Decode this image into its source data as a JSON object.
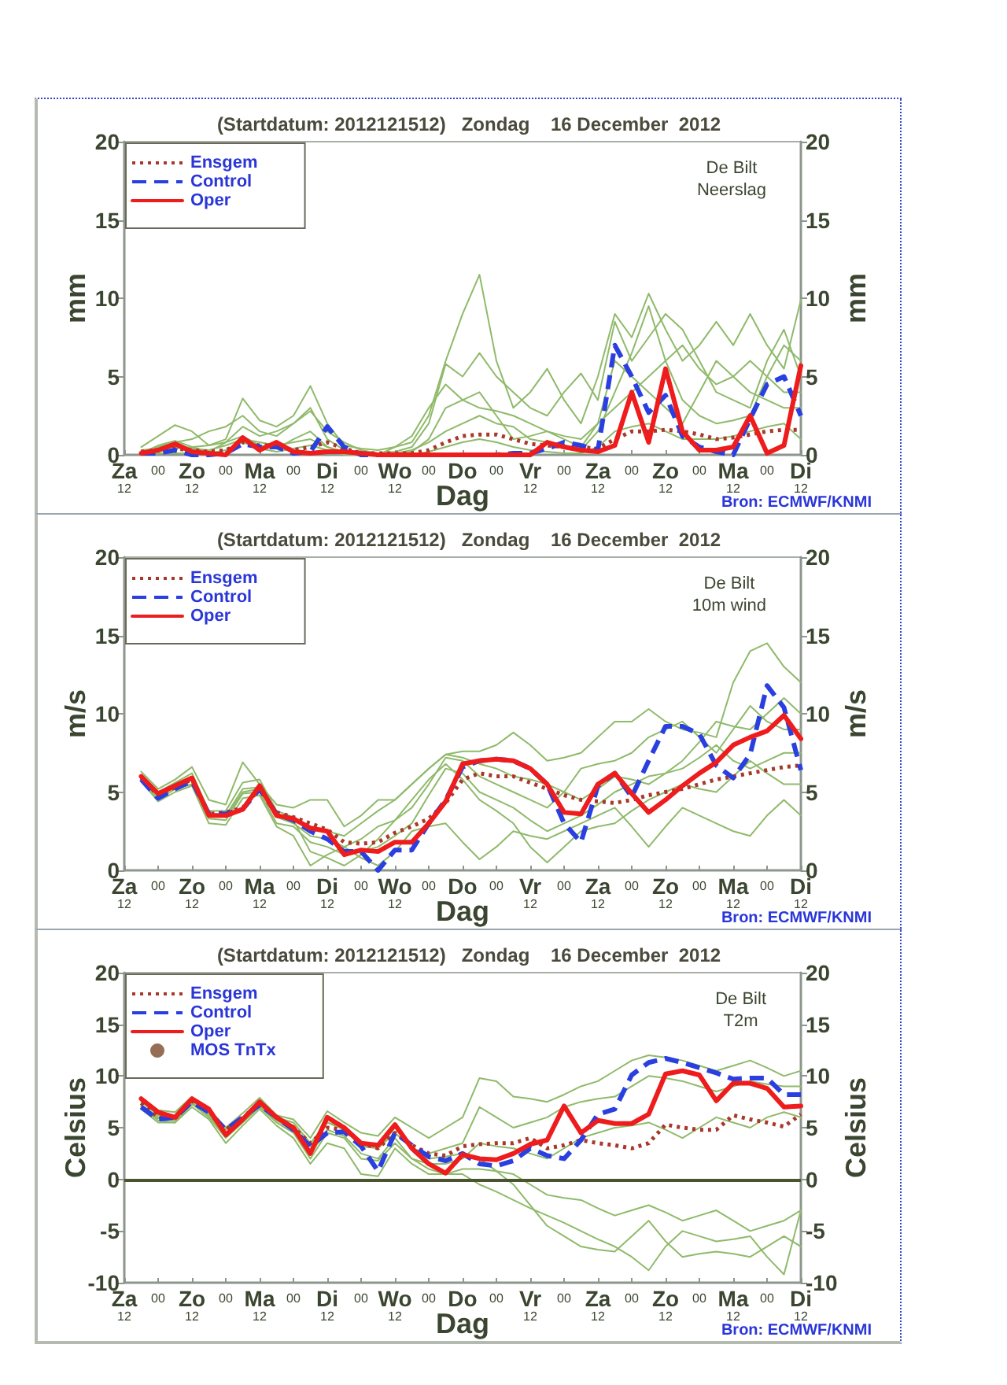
{
  "chart_data": [
    {
      "type": "line",
      "title": "(Startdatum: 2012121512)   Zondag    16 December  2012",
      "xlabel": "Dag",
      "ylabel": "mm",
      "y2label": "mm",
      "annotations": [
        "De Bilt\nNeerslag",
        "Bron: ECMWF/KNMI"
      ],
      "legend": "top left",
      "categories": [
        "Za\n12",
        null,
        "00",
        null,
        "Zo\n12",
        null,
        "00",
        null,
        "Ma\n12",
        null,
        "00",
        null,
        "Di\n12",
        null,
        "00",
        null,
        "Wo\n12",
        null,
        "00",
        null,
        "Do",
        null,
        "00",
        null,
        "Vr\n12",
        null,
        "00",
        null,
        "Za\n12",
        null,
        "00",
        null,
        "Zo\n12",
        null,
        "00",
        null,
        "Ma\n12",
        null,
        "00",
        null,
        "Di\n12"
      ],
      "ylim": [
        0,
        20
      ],
      "yticks": [
        0,
        5,
        10,
        15,
        20
      ],
      "y2lim": [
        0,
        20
      ],
      "y2ticks": [
        0,
        5,
        10,
        15,
        20
      ],
      "series": [
        {
          "color": "#8fba6a",
          "values": [
            null,
            0.5,
            1.2,
            1.9,
            1.5,
            0.6,
            1.0,
            3.6,
            2.2,
            1.8,
            2.5,
            4.4,
            2.0,
            0.6,
            0.4,
            0.3,
            0.5,
            0.8,
            2.5,
            6.0,
            9.0,
            11.5,
            6.0,
            3.0,
            4.0,
            5.5,
            3.5,
            2.0,
            5.0,
            9.0,
            7.5,
            10.3,
            8.0,
            6.0,
            7.0,
            8.5,
            7.0,
            9.0,
            7.0,
            5.5,
            9.9
          ]
        },
        {
          "color": "#8fba6a",
          "values": [
            null,
            0.2,
            0.5,
            0.8,
            1.0,
            1.5,
            1.8,
            2.5,
            1.5,
            1.2,
            2.0,
            2.8,
            1.5,
            0.8,
            0.3,
            0.1,
            0.2,
            0.5,
            2.0,
            5.8,
            5.0,
            6.5,
            5.0,
            4.0,
            3.0,
            2.5,
            4.0,
            5.2,
            3.5,
            8.5,
            6.0,
            7.5,
            9.0,
            8.0,
            6.0,
            4.0,
            3.5,
            3.0,
            6.0,
            8.0,
            5.0
          ]
        },
        {
          "color": "#8fba6a",
          "values": [
            null,
            0.1,
            0.6,
            0.9,
            0.5,
            0.2,
            0.8,
            1.8,
            1.2,
            1.5,
            2.0,
            3.0,
            1.0,
            0.3,
            0.1,
            0.0,
            0.1,
            0.2,
            1.0,
            3.0,
            3.5,
            4.0,
            2.5,
            1.0,
            1.2,
            1.5,
            1.0,
            0.5,
            2.0,
            6.0,
            5.0,
            4.0,
            3.0,
            2.0,
            4.0,
            6.0,
            5.0,
            4.0,
            3.5,
            3.0,
            3.0
          ]
        },
        {
          "color": "#8fba6a",
          "values": [
            null,
            0.0,
            0.2,
            0.4,
            0.5,
            0.6,
            0.8,
            1.2,
            0.6,
            0.4,
            1.0,
            1.5,
            0.5,
            0.1,
            0.0,
            0.0,
            0.1,
            0.3,
            0.8,
            1.5,
            2.0,
            2.5,
            2.0,
            1.8,
            1.0,
            0.8,
            0.5,
            0.3,
            1.5,
            4.0,
            6.5,
            9.5,
            6.0,
            3.5,
            2.5,
            2.0,
            2.2,
            2.5,
            5.0,
            7.0,
            6.0
          ]
        },
        {
          "color": "#8fba6a",
          "values": [
            null,
            0.0,
            0.1,
            0.1,
            0.1,
            0.1,
            0.3,
            0.8,
            0.4,
            0.2,
            0.4,
            0.6,
            0.3,
            0.0,
            0.0,
            0.0,
            0.0,
            0.0,
            0.2,
            0.5,
            0.8,
            1.0,
            0.8,
            0.5,
            0.3,
            0.2,
            0.1,
            0.1,
            0.5,
            1.5,
            1.8,
            2.0,
            1.5,
            1.0,
            1.0,
            1.0,
            1.2,
            1.5,
            1.8,
            2.0,
            1.0
          ]
        },
        {
          "color": "#8fba6a",
          "values": [
            null,
            0.3,
            0.4,
            0.5,
            0.4,
            0.3,
            0.6,
            1.0,
            0.8,
            0.6,
            0.8,
            1.0,
            0.5,
            0.2,
            0.1,
            0.0,
            0.5,
            1.2,
            3.0,
            4.5,
            3.5,
            3.0,
            2.8,
            2.5,
            2.0,
            1.5,
            1.2,
            1.0,
            2.0,
            3.0,
            4.0,
            5.0,
            6.0,
            7.0,
            5.5,
            4.5,
            5.0,
            6.0,
            5.0,
            4.0,
            4.0
          ]
        },
        {
          "name": "Ensgem",
          "color": "#a8382a",
          "line_style": "dotted",
          "values": [
            null,
            0.2,
            0.3,
            0.4,
            0.3,
            0.2,
            0.3,
            0.8,
            0.6,
            0.6,
            0.3,
            0.5,
            0.8,
            0.4,
            0.1,
            0.1,
            0.1,
            0.1,
            0.3,
            0.8,
            1.2,
            1.3,
            1.3,
            1.0,
            0.7,
            0.6,
            0.5,
            0.5,
            0.4,
            1.0,
            1.5,
            1.5,
            1.6,
            1.5,
            1.3,
            1.0,
            1.1,
            1.3,
            1.5,
            1.6,
            1.6
          ]
        },
        {
          "name": "Control",
          "color": "#2a3fe0",
          "line_style": "dashed",
          "values": [
            null,
            0.1,
            0.1,
            0.3,
            0.0,
            0.0,
            0.1,
            0.7,
            0.5,
            0.5,
            0.1,
            0.2,
            1.8,
            0.5,
            0.0,
            0.0,
            0.0,
            0.0,
            0.0,
            0.0,
            0.0,
            0.0,
            0.0,
            0.1,
            0.1,
            0.4,
            0.8,
            0.6,
            0.3,
            7.0,
            5.0,
            2.7,
            3.8,
            1.2,
            0.5,
            0.2,
            0.0,
            2.3,
            4.5,
            5.0,
            2.5
          ]
        },
        {
          "name": "Oper",
          "color": "#ee1c1c",
          "line_style": "solid",
          "values": [
            null,
            0.1,
            0.3,
            0.7,
            0.2,
            0.1,
            0.0,
            1.1,
            0.3,
            0.8,
            0.2,
            0.1,
            0.2,
            0.2,
            0.1,
            0.0,
            0.0,
            0.0,
            0.0,
            0.0,
            0.0,
            0.0,
            0.0,
            0.0,
            0.0,
            0.8,
            0.5,
            0.3,
            0.2,
            0.6,
            4.0,
            0.8,
            5.5,
            1.5,
            0.3,
            0.3,
            0.5,
            2.5,
            0.1,
            0.6,
            5.7
          ]
        }
      ]
    },
    {
      "type": "line",
      "title": "(Startdatum: 2012121512)   Zondag    16 December  2012",
      "xlabel": "Dag",
      "ylabel": "m/s",
      "y2label": "m/s",
      "annotations": [
        "De Bilt\n10m wind",
        "Bron: ECMWF/KNMI"
      ],
      "legend": "top left",
      "categories": [
        "Za\n12",
        null,
        "00",
        null,
        "Zo\n12",
        null,
        "00",
        null,
        "Ma\n12",
        null,
        "00",
        null,
        "Di\n12",
        null,
        "00",
        null,
        "Wo\n12",
        null,
        "00",
        null,
        "Do",
        null,
        "00",
        null,
        "Vr\n12",
        null,
        "00",
        null,
        "Za\n12",
        null,
        "00",
        null,
        "Zo\n12",
        null,
        "00",
        null,
        "Ma\n12",
        null,
        "00",
        null,
        "Di\n12"
      ],
      "ylim": [
        0,
        20
      ],
      "yticks": [
        0,
        5,
        10,
        15,
        20
      ],
      "y2lim": [
        0,
        20
      ],
      "y2ticks": [
        0,
        5,
        10,
        15,
        20
      ],
      "series": [
        {
          "color": "#8fba6a",
          "values": [
            null,
            6.3,
            5.2,
            5.8,
            6.6,
            4.5,
            4.2,
            6.9,
            5.5,
            4.2,
            4.0,
            4.5,
            4.5,
            2.8,
            3.5,
            4.5,
            4.5,
            5.5,
            6.5,
            7.4,
            7.6,
            7.6,
            8.0,
            8.8,
            8.0,
            7.0,
            7.2,
            7.5,
            8.5,
            9.5,
            9.5,
            10.3,
            9.5,
            9.0,
            8.8,
            8.5,
            12.0,
            14.0,
            14.5,
            13.0,
            12.0
          ]
        },
        {
          "color": "#8fba6a",
          "values": [
            null,
            5.8,
            4.7,
            5.3,
            5.8,
            3.6,
            3.4,
            5.0,
            5.2,
            3.4,
            3.0,
            2.2,
            2.0,
            1.5,
            2.0,
            2.8,
            3.2,
            4.0,
            5.5,
            7.2,
            7.0,
            6.0,
            5.5,
            5.0,
            4.5,
            4.0,
            5.0,
            6.5,
            6.8,
            7.0,
            7.5,
            8.5,
            9.0,
            9.5,
            8.5,
            7.5,
            9.0,
            10.5,
            9.5,
            9.0,
            9.0
          ]
        },
        {
          "color": "#8fba6a",
          "values": [
            null,
            5.9,
            4.5,
            5.2,
            5.5,
            3.3,
            3.2,
            4.9,
            5.0,
            3.0,
            2.8,
            1.8,
            1.5,
            1.0,
            1.2,
            1.5,
            2.2,
            3.0,
            4.8,
            6.5,
            6.2,
            5.0,
            4.5,
            4.0,
            3.2,
            2.5,
            3.0,
            3.5,
            4.2,
            5.0,
            5.5,
            6.0,
            6.2,
            6.5,
            7.2,
            8.0,
            7.0,
            6.5,
            7.0,
            7.5,
            7.5
          ]
        },
        {
          "color": "#8fba6a",
          "values": [
            null,
            6.0,
            4.8,
            5.5,
            5.9,
            3.5,
            3.5,
            5.2,
            5.3,
            3.5,
            3.2,
            1.2,
            0.8,
            0.3,
            1.0,
            2.0,
            3.2,
            4.5,
            5.8,
            6.8,
            5.8,
            4.5,
            3.8,
            3.0,
            1.5,
            0.5,
            1.5,
            2.5,
            2.8,
            3.0,
            3.8,
            4.5,
            5.0,
            5.5,
            5.2,
            5.0,
            6.0,
            7.0,
            6.2,
            5.5,
            5.5
          ]
        },
        {
          "color": "#8fba6a",
          "values": [
            null,
            5.7,
            4.4,
            5.0,
            5.4,
            3.0,
            2.9,
            4.6,
            4.8,
            2.8,
            2.2,
            0.3,
            1.0,
            1.5,
            0.8,
            0.3,
            1.2,
            2.5,
            2.8,
            3.0,
            1.8,
            0.7,
            1.5,
            2.5,
            2.2,
            2.0,
            2.5,
            3.0,
            3.5,
            4.0,
            2.8,
            1.5,
            2.8,
            4.0,
            3.5,
            3.0,
            2.5,
            2.2,
            3.5,
            4.5,
            3.5
          ]
        },
        {
          "color": "#8fba6a",
          "values": [
            null,
            6.1,
            5.0,
            5.6,
            6.2,
            3.8,
            3.8,
            5.6,
            5.8,
            3.8,
            3.4,
            2.8,
            2.5,
            2.2,
            3.0,
            3.8,
            4.5,
            5.5,
            6.5,
            7.4,
            7.2,
            6.8,
            6.5,
            6.0,
            5.8,
            5.5,
            5.0,
            4.5,
            5.2,
            6.0,
            5.8,
            5.5,
            6.2,
            7.0,
            8.2,
            9.5,
            9.2,
            9.0,
            10.0,
            11.0,
            10.0
          ]
        },
        {
          "name": "Ensgem",
          "color": "#a8382a",
          "line_style": "dotted",
          "values": [
            null,
            5.9,
            4.8,
            5.3,
            5.8,
            3.6,
            3.7,
            4.0,
            5.2,
            3.7,
            3.4,
            3.0,
            2.6,
            1.8,
            1.7,
            1.8,
            2.4,
            2.8,
            3.3,
            4.3,
            5.8,
            6.2,
            6.0,
            6.0,
            5.6,
            5.2,
            4.8,
            4.5,
            4.4,
            4.3,
            4.5,
            4.8,
            5.0,
            5.2,
            5.5,
            5.8,
            6.0,
            6.2,
            6.4,
            6.6,
            6.7
          ]
        },
        {
          "name": "Control",
          "color": "#2a3fe0",
          "line_style": "dashed",
          "values": [
            null,
            5.8,
            4.6,
            5.2,
            5.7,
            3.6,
            3.6,
            3.9,
            5.2,
            3.6,
            3.2,
            2.5,
            2.0,
            1.2,
            1.2,
            0.0,
            1.3,
            1.3,
            3.0,
            4.5,
            6.6,
            7.0,
            7.1,
            7.0,
            6.5,
            5.5,
            3.0,
            1.8,
            5.4,
            6.2,
            4.7,
            7.0,
            9.2,
            9.2,
            8.7,
            6.7,
            5.9,
            7.4,
            11.8,
            10.4,
            6.4
          ]
        },
        {
          "name": "Oper",
          "color": "#ee1c1c",
          "line_style": "solid",
          "values": [
            null,
            6.0,
            4.9,
            5.4,
            5.9,
            3.5,
            3.5,
            3.9,
            5.4,
            3.5,
            3.3,
            2.7,
            2.5,
            1.0,
            1.3,
            1.2,
            1.8,
            1.8,
            3.0,
            4.4,
            6.8,
            7.0,
            7.1,
            7.0,
            6.5,
            5.5,
            3.7,
            3.6,
            5.5,
            6.2,
            4.9,
            3.7,
            4.5,
            5.4,
            6.2,
            6.9,
            8.0,
            8.5,
            8.9,
            9.9,
            8.4
          ]
        }
      ]
    },
    {
      "type": "line",
      "title": "(Startdatum: 2012121512)   Zondag    16 December  2012",
      "xlabel": "Dag",
      "ylabel": "Celsius",
      "y2label": "Celsius",
      "annotations": [
        "De Bilt\nT2m",
        "Bron: ECMWF/KNMI"
      ],
      "legend": "top left",
      "categories": [
        "Za\n12",
        null,
        "00",
        null,
        "Zo\n12",
        null,
        "00",
        null,
        "Ma\n12",
        null,
        "00",
        null,
        "Di\n12",
        null,
        "00",
        null,
        "Wo\n12",
        null,
        "00",
        null,
        "Do",
        null,
        "00",
        null,
        "Vr\n12",
        null,
        "00",
        null,
        "Za\n12",
        null,
        "00",
        null,
        "Zo\n12",
        null,
        "00",
        null,
        "Ma\n12",
        null,
        "00",
        null,
        "Di\n12"
      ],
      "ylim": [
        -10,
        20
      ],
      "yticks": [
        -10,
        -5,
        0,
        5,
        10,
        15,
        20
      ],
      "y2lim": [
        -10,
        20
      ],
      "y2ticks": [
        -10,
        -5,
        0,
        5,
        10,
        15,
        20
      ],
      "ref_lines": [
        {
          "axis": "y",
          "value": 0,
          "color": "#4a5530"
        }
      ],
      "series": [
        {
          "color": "#8fba6a",
          "values": [
            null,
            7.9,
            6.7,
            6.5,
            8.0,
            6.8,
            5.0,
            6.4,
            7.9,
            6.2,
            5.8,
            4.0,
            6.6,
            5.5,
            4.5,
            4.2,
            6.0,
            5.0,
            4.0,
            5.0,
            6.0,
            9.8,
            9.5,
            8.0,
            7.8,
            7.5,
            8.2,
            9.0,
            9.5,
            10.5,
            11.5,
            12.0,
            11.8,
            11.5,
            11.0,
            10.5,
            11.0,
            11.5,
            10.8,
            10.0,
            10.5
          ]
        },
        {
          "color": "#8fba6a",
          "values": [
            null,
            7.2,
            6.0,
            5.8,
            7.6,
            6.4,
            4.5,
            5.8,
            7.3,
            5.8,
            5.2,
            3.2,
            5.5,
            4.8,
            3.2,
            3.0,
            4.5,
            3.0,
            2.5,
            3.0,
            3.5,
            7.0,
            6.0,
            5.0,
            5.5,
            6.0,
            7.0,
            7.5,
            7.8,
            8.0,
            9.0,
            10.0,
            9.8,
            9.5,
            9.0,
            8.5,
            9.0,
            9.5,
            9.2,
            9.0,
            9.0
          ]
        },
        {
          "color": "#8fba6a",
          "values": [
            null,
            7.0,
            5.7,
            5.5,
            7.3,
            6.0,
            4.0,
            5.5,
            7.0,
            5.5,
            4.5,
            2.0,
            4.5,
            4.0,
            2.0,
            1.8,
            3.5,
            2.0,
            1.5,
            1.5,
            2.0,
            3.5,
            3.2,
            3.0,
            2.5,
            2.0,
            3.0,
            4.0,
            4.5,
            5.0,
            5.2,
            5.5,
            4.8,
            4.0,
            5.0,
            6.0,
            5.5,
            5.0,
            6.0,
            6.5,
            6.0
          ]
        },
        {
          "color": "#8fba6a",
          "values": [
            null,
            6.8,
            5.5,
            5.5,
            7.0,
            5.8,
            3.5,
            5.2,
            6.8,
            5.2,
            4.0,
            1.5,
            3.5,
            3.0,
            0.5,
            0.3,
            3.0,
            1.5,
            0.5,
            0.5,
            1.0,
            1.0,
            0.8,
            0.5,
            -0.5,
            -1.5,
            -1.8,
            -2.0,
            -2.8,
            -3.5,
            -3.0,
            -2.5,
            -3.2,
            -4.0,
            -3.5,
            -3.0,
            -4.0,
            -5.0,
            -4.5,
            -4.0,
            -3.0
          ]
        },
        {
          "color": "#8fba6a",
          "values": [
            null,
            7.1,
            5.9,
            5.7,
            7.4,
            6.2,
            4.2,
            5.7,
            7.1,
            5.7,
            4.8,
            2.5,
            4.8,
            4.2,
            2.5,
            2.0,
            4.0,
            2.0,
            1.0,
            0.5,
            0.5,
            -0.5,
            -1.2,
            -2.0,
            -2.8,
            -3.5,
            -4.2,
            -5.0,
            -5.8,
            -6.5,
            -7.5,
            -8.8,
            -6.5,
            -5.0,
            -5.5,
            -6.0,
            -5.8,
            -5.5,
            -7.5,
            -9.2,
            -3.0
          ]
        },
        {
          "color": "#8fba6a",
          "values": [
            null,
            7.5,
            6.2,
            6.0,
            7.8,
            6.5,
            4.8,
            6.0,
            7.5,
            6.0,
            5.5,
            3.5,
            5.5,
            5.0,
            3.5,
            3.0,
            5.0,
            3.0,
            2.0,
            2.2,
            2.5,
            2.0,
            0.8,
            -0.5,
            -2.5,
            -4.5,
            -5.5,
            -6.5,
            -6.8,
            -7.0,
            -5.5,
            -4.0,
            -6.0,
            -7.5,
            -7.2,
            -7.0,
            -7.2,
            -7.5,
            -6.5,
            -5.5,
            -6.5
          ]
        },
        {
          "name": "Ensgem",
          "color": "#a8382a",
          "line_style": "dotted",
          "values": [
            null,
            7.4,
            6.0,
            5.9,
            7.6,
            6.6,
            4.8,
            6.0,
            7.2,
            6.0,
            5.0,
            3.5,
            5.0,
            4.8,
            3.5,
            3.0,
            4.5,
            3.3,
            2.5,
            2.3,
            3.2,
            3.4,
            3.5,
            3.5,
            4.0,
            3.0,
            3.3,
            3.8,
            3.5,
            3.3,
            3.0,
            3.5,
            5.3,
            5.0,
            4.8,
            4.8,
            6.2,
            5.8,
            5.5,
            5.1,
            6.3
          ]
        },
        {
          "name": "Control",
          "color": "#2a3fe0",
          "line_style": "dashed",
          "values": [
            null,
            7.0,
            5.8,
            6.0,
            7.5,
            6.5,
            4.8,
            6.0,
            7.2,
            6.0,
            4.8,
            3.2,
            4.5,
            4.6,
            3.2,
            0.8,
            4.5,
            3.3,
            2.2,
            1.8,
            2.5,
            1.5,
            1.3,
            1.8,
            3.0,
            2.3,
            2.0,
            3.8,
            6.3,
            6.8,
            10.1,
            11.3,
            11.7,
            11.3,
            10.8,
            10.3,
            9.7,
            9.8,
            9.8,
            8.2,
            8.2
          ]
        },
        {
          "name": "Oper",
          "color": "#ee1c1c",
          "line_style": "solid",
          "values": [
            null,
            7.8,
            6.5,
            6.0,
            7.8,
            6.8,
            4.3,
            5.8,
            7.5,
            6.0,
            5.0,
            2.5,
            6.0,
            5.0,
            3.5,
            3.3,
            5.3,
            3.0,
            1.5,
            0.6,
            2.4,
            2.0,
            1.9,
            2.5,
            3.4,
            3.8,
            7.1,
            4.5,
            5.7,
            5.4,
            5.4,
            6.3,
            10.2,
            10.5,
            10.1,
            7.6,
            9.3,
            9.3,
            8.8,
            7.0,
            7.1
          ]
        },
        {
          "name": "MOS TnTx",
          "type": "scatter",
          "marker": "circle",
          "color": "#7a4a2a",
          "values": [
            null,
            null,
            null,
            null,
            null,
            null,
            null,
            null,
            null,
            null,
            null,
            null,
            null,
            null,
            null,
            null,
            null,
            null,
            null,
            null,
            null,
            null,
            null,
            null,
            null,
            null,
            null,
            null,
            null,
            null,
            null,
            null,
            null,
            null,
            null,
            null,
            null,
            null,
            null,
            null,
            null
          ]
        }
      ]
    }
  ]
}
